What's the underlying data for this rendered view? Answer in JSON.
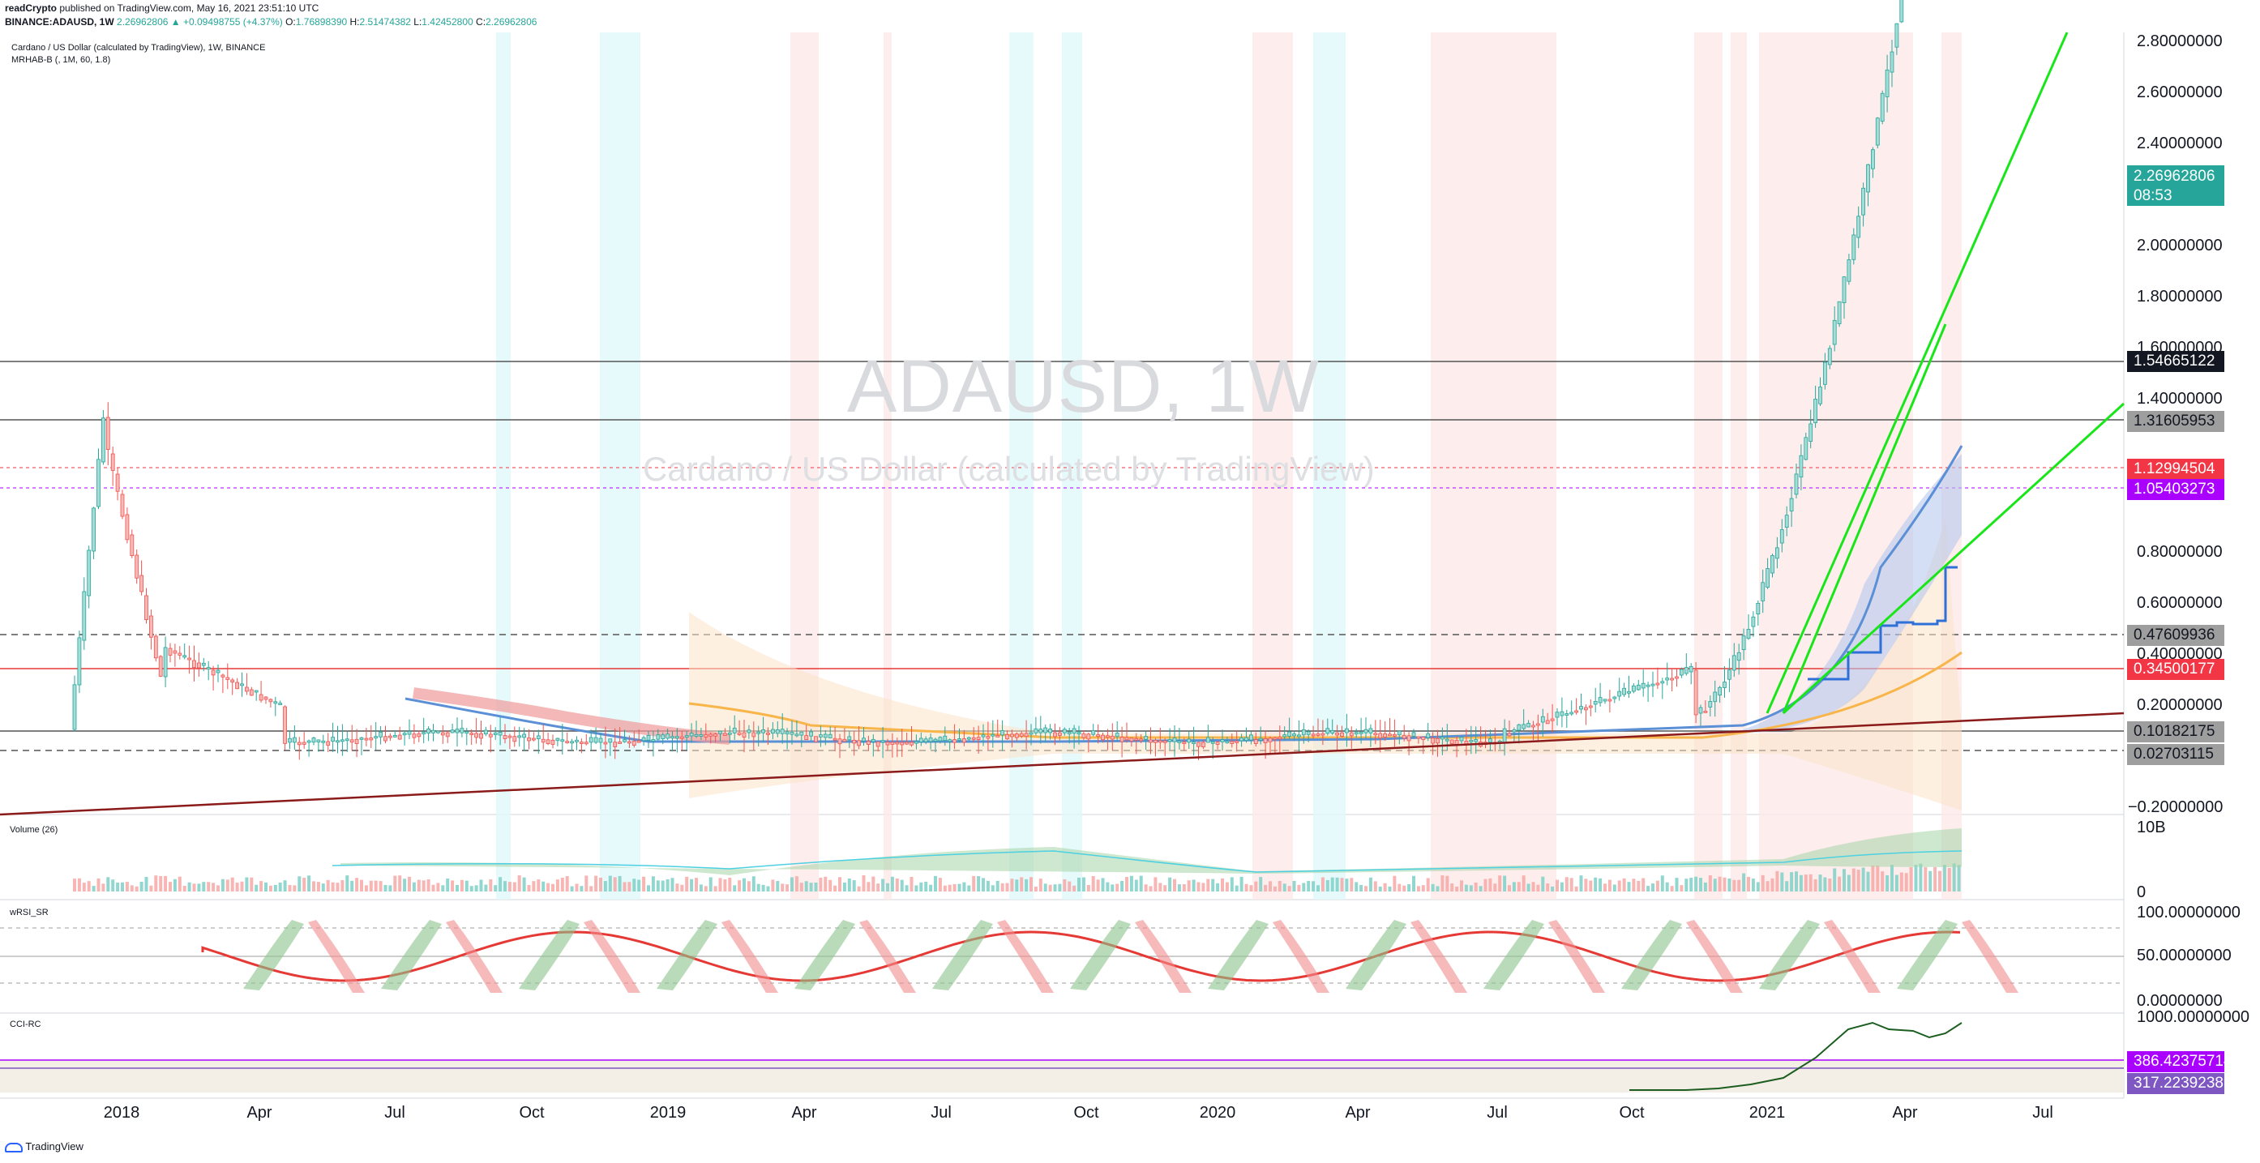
{
  "publish_line": {
    "author": "readCrypto",
    "text": " published on TradingView.com, May 16, 2021 23:51:10 UTC"
  },
  "ohlc_line": {
    "symbol": "BINANCE:ADAUSD, 1W",
    "price": "2.26962806",
    "change": "▲ +0.09498755 (+4.37%)",
    "o_label": "O:",
    "o": "1.76898390",
    "h_label": "H:",
    "h": "2.51474382",
    "l_label": "L:",
    "l": "1.42452800",
    "c_label": "C:",
    "c": "2.26962806"
  },
  "legend": {
    "title": "Cardano / US Dollar (calculated by TradingView), 1W, BINANCE",
    "indicator": "MRHAB-B (, 1M, 60, 1.8)"
  },
  "watermark": {
    "symbol": "ADAUSD, 1W",
    "description": "Cardano / US Dollar (calculated by TradingView)"
  },
  "price_axis": [
    "2.80000000",
    "2.60000000",
    "2.40000000",
    "2.00000000",
    "1.80000000",
    "1.60000000",
    "1.40000000",
    "0.80000000",
    "0.60000000",
    "0.40000000",
    "0.20000000",
    "−0.20000000"
  ],
  "price_badges": {
    "last": "2.26962806",
    "countdown": "08:53",
    "b1": "1.54665122",
    "b2": "1.31605953",
    "b3": "1.12994504",
    "b4": "1.05403273",
    "b5": "0.47609936",
    "b6": "0.34500177",
    "b7": "0.10182175",
    "b8": "0.02703115"
  },
  "colors": {
    "up": "#26a69a",
    "down": "#ef5350",
    "badge_teal": "#26a69a",
    "badge_black": "#131722",
    "badge_red": "#f23645",
    "badge_purple": "#aa00ff",
    "badge_gray": "#9e9e9e",
    "trend_green": "#00e600",
    "trend_red": "#8b0000"
  },
  "panes": {
    "volume": {
      "title": "Volume (26)",
      "axis_top": "10B",
      "axis_bottom": "0"
    },
    "wrsi": {
      "title": "wRSI_SR",
      "axis": [
        "100.00000000",
        "50.00000000",
        "0.00000000"
      ]
    },
    "cci": {
      "title": "CCI-RC",
      "axis_top": "1000.00000000",
      "badge1": "386.42375714",
      "badge2": "317.22392389"
    }
  },
  "time_axis": [
    "2018",
    "Apr",
    "Jul",
    "Oct",
    "2019",
    "Apr",
    "Jul",
    "Oct",
    "2020",
    "Apr",
    "Jul",
    "Oct",
    "2021",
    "Apr",
    "Jul"
  ],
  "footer": {
    "brand": "TradingView"
  }
}
